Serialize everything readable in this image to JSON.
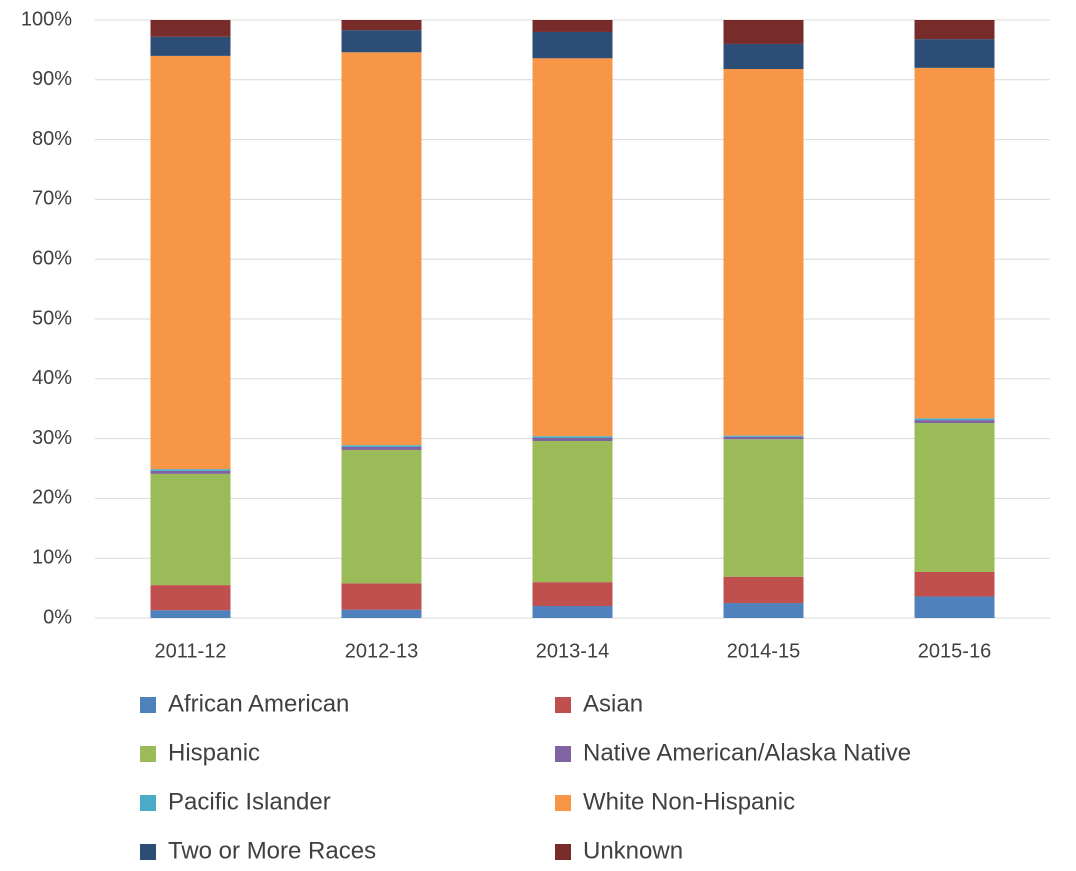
{
  "chart_data": {
    "type": "stacked_bar",
    "categories": [
      "2011-12",
      "2012-13",
      "2013-14",
      "2014-15",
      "2015-16"
    ],
    "series": [
      {
        "name": "African American",
        "color": "#4f81bd",
        "values": [
          1.3,
          1.4,
          2.0,
          2.5,
          3.6
        ]
      },
      {
        "name": "Asian",
        "color": "#c0504d",
        "values": [
          4.2,
          4.4,
          4.0,
          4.4,
          4.1
        ]
      },
      {
        "name": "Hispanic",
        "color": "#9bbb59",
        "values": [
          18.6,
          22.3,
          23.6,
          23.0,
          24.9
        ]
      },
      {
        "name": "Native American/Alaska Native",
        "color": "#8064a2",
        "values": [
          0.5,
          0.5,
          0.5,
          0.4,
          0.5
        ]
      },
      {
        "name": "Pacific Islander",
        "color": "#4bacc6",
        "values": [
          0.3,
          0.3,
          0.3,
          0.2,
          0.3
        ]
      },
      {
        "name": "White Non-Hispanic",
        "color": "#f79646",
        "values": [
          69.1,
          65.7,
          63.2,
          61.3,
          58.6
        ]
      },
      {
        "name": "Two or More Races",
        "color": "#2c4d75",
        "values": [
          3.2,
          3.7,
          4.4,
          4.2,
          4.8
        ]
      },
      {
        "name": "Unknown",
        "color": "#772c2a",
        "values": [
          2.8,
          1.7,
          2.0,
          4.0,
          3.2
        ]
      }
    ],
    "ylim": [
      0,
      100
    ],
    "yticks": [
      {
        "value": 0,
        "label": "0%"
      },
      {
        "value": 10,
        "label": "10%"
      },
      {
        "value": 20,
        "label": "20%"
      },
      {
        "value": 30,
        "label": "30%"
      },
      {
        "value": 40,
        "label": "40%"
      },
      {
        "value": 50,
        "label": "50%"
      },
      {
        "value": 60,
        "label": "60%"
      },
      {
        "value": 70,
        "label": "70%"
      },
      {
        "value": 80,
        "label": "80%"
      },
      {
        "value": 90,
        "label": "90%"
      },
      {
        "value": 100,
        "label": "100%"
      }
    ],
    "grid": true,
    "legend": "bottom"
  }
}
